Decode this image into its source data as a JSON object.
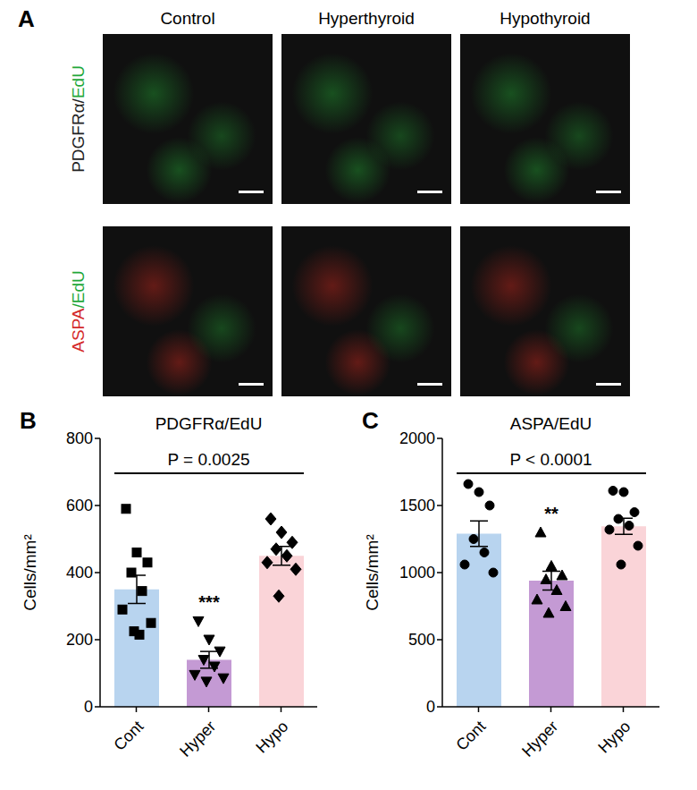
{
  "panel_a": {
    "label": "A",
    "columns": [
      "Control",
      "Hyperthyroid",
      "Hypothyroid"
    ],
    "rows": [
      {
        "parts": [
          "PDGFRα/",
          "EdU"
        ],
        "colors": [
          "#222222",
          "#1fa83a"
        ]
      },
      {
        "parts": [
          "ASPA",
          "/EdU"
        ],
        "colors": [
          "#d42a2a",
          "#1fa83a"
        ]
      }
    ]
  },
  "chart_data": [
    {
      "type": "bar",
      "panel": "B",
      "title": "PDGFRα/EdU",
      "y_label": "Cells/mm²",
      "categories": [
        "Cont",
        "Hyper",
        "Hypo"
      ],
      "values": [
        350,
        140,
        450
      ],
      "errors": [
        42,
        25,
        28
      ],
      "colors": [
        "#b8d4ef",
        "#c49ad4",
        "#fad4d8"
      ],
      "ylim": [
        0,
        800
      ],
      "yticks": [
        0,
        200,
        400,
        600,
        800
      ],
      "annotation": "P = 0.0025",
      "significance": [
        null,
        "***",
        null
      ],
      "points": [
        {
          "category": "Cont",
          "marker": "square",
          "values": [
            590,
            460,
            430,
            400,
            345,
            290,
            250,
            225,
            215
          ]
        },
        {
          "category": "Hyper",
          "marker": "triangle-down",
          "values": [
            255,
            200,
            165,
            140,
            120,
            95,
            85,
            75
          ]
        },
        {
          "category": "Hypo",
          "marker": "diamond",
          "values": [
            560,
            520,
            490,
            470,
            450,
            430,
            410,
            330
          ]
        }
      ]
    },
    {
      "type": "bar",
      "panel": "C",
      "title": "ASPA/EdU",
      "y_label": "Cells/mm²",
      "categories": [
        "Cont",
        "Hyper",
        "Hypo"
      ],
      "values": [
        1290,
        940,
        1345
      ],
      "errors": [
        95,
        70,
        60
      ],
      "colors": [
        "#b8d4ef",
        "#c49ad4",
        "#fad4d8"
      ],
      "ylim": [
        0,
        2000
      ],
      "yticks": [
        0,
        500,
        1000,
        1500,
        2000
      ],
      "annotation": "P < 0.0001",
      "significance": [
        null,
        "**",
        null
      ],
      "points": [
        {
          "category": "Cont",
          "marker": "circle",
          "values": [
            1660,
            1600,
            1500,
            1250,
            1150,
            1060,
            1000
          ]
        },
        {
          "category": "Hyper",
          "marker": "triangle",
          "values": [
            1300,
            1050,
            980,
            950,
            870,
            800,
            750,
            700
          ]
        },
        {
          "category": "Hypo",
          "marker": "circle",
          "values": [
            1610,
            1600,
            1450,
            1400,
            1350,
            1320,
            1200,
            1060
          ]
        }
      ]
    }
  ]
}
